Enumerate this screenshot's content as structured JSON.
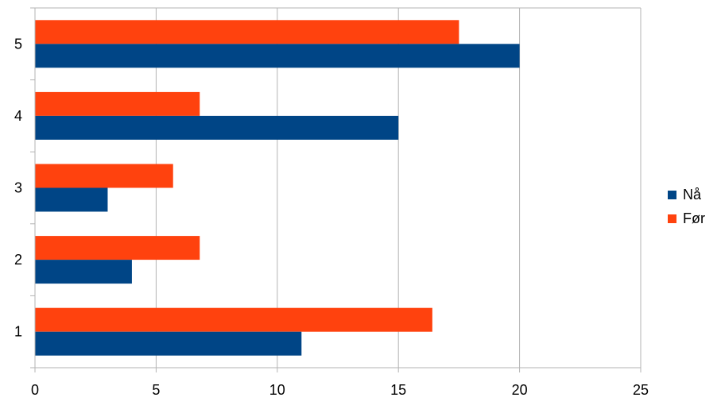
{
  "chart_data": {
    "type": "bar",
    "orientation": "horizontal",
    "categories": [
      "1",
      "2",
      "3",
      "4",
      "5"
    ],
    "series": [
      {
        "name": "Nå",
        "color": "#004586",
        "values": [
          11,
          4,
          3,
          15,
          20
        ]
      },
      {
        "name": "Før",
        "color": "#ff420e",
        "values": [
          16.4,
          6.8,
          5.7,
          6.8,
          17.5
        ]
      }
    ],
    "xlim": [
      0,
      25
    ],
    "xticks": [
      "0",
      "5",
      "10",
      "15",
      "20",
      "25"
    ],
    "grid": true,
    "legend_position": "right",
    "title": "",
    "xlabel": "",
    "ylabel": ""
  },
  "legend": {
    "items": [
      {
        "label": "Nå",
        "color": "#004586"
      },
      {
        "label": "Før",
        "color": "#ff420e"
      }
    ]
  }
}
